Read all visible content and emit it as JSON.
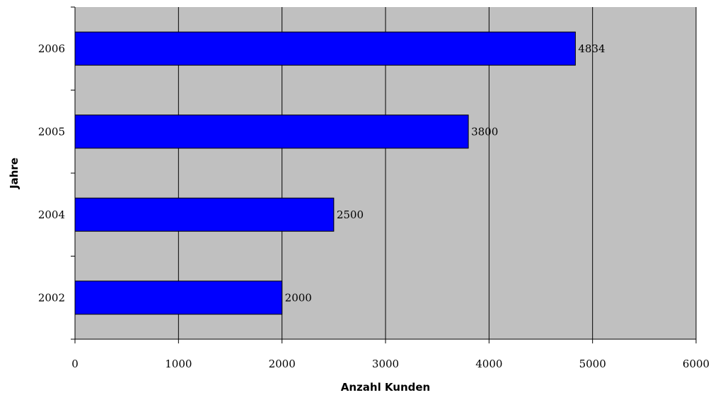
{
  "chart_data": {
    "type": "bar",
    "orientation": "horizontal",
    "categories": [
      "2006",
      "2005",
      "2004",
      "2002"
    ],
    "values": [
      4834,
      3800,
      2500,
      2000
    ],
    "data_labels": [
      "4834",
      "3800",
      "2500",
      "2000"
    ],
    "title": "",
    "xlabel": "Anzahl Kunden",
    "ylabel": "Jahre",
    "xlim": [
      0,
      6000
    ],
    "x_ticks": [
      0,
      1000,
      2000,
      3000,
      4000,
      5000,
      6000
    ],
    "x_tick_labels": [
      "0",
      "1000",
      "2000",
      "3000",
      "4000",
      "5000",
      "6000"
    ],
    "grid": "vertical",
    "legend": "none"
  },
  "colors": {
    "bar_fill": "#0000FF",
    "plot_background": "#C0C0C0",
    "gridline": "#000000",
    "bar_outline": "#000000"
  }
}
